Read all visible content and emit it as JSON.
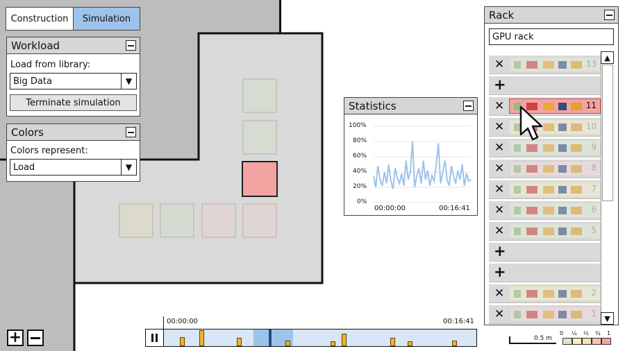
{
  "tabs": [
    {
      "label": "Construction",
      "active": false
    },
    {
      "label": "Simulation",
      "active": true
    }
  ],
  "workload": {
    "title": "Workload",
    "load_label": "Load from library:",
    "selected": "Big Data",
    "terminate_label": "Terminate simulation"
  },
  "colors_panel": {
    "title": "Colors",
    "represent_label": "Colors represent:",
    "selected": "Load"
  },
  "statistics": {
    "title": "Statistics",
    "yticks": [
      "100%",
      "80%",
      "60%",
      "40%",
      "20%",
      "0%"
    ],
    "x_start": "00:00:00",
    "x_end": "00:16:41"
  },
  "chart_data": {
    "type": "line",
    "ylim": [
      0,
      100
    ],
    "x_labels": [
      "00:00:00",
      "00:16:41"
    ],
    "yticks": [
      "0%",
      "20%",
      "40%",
      "60%",
      "80%",
      "100%"
    ],
    "values": [
      35,
      20,
      48,
      30,
      22,
      40,
      25,
      50,
      28,
      18,
      45,
      32,
      25,
      38,
      22,
      55,
      30,
      40,
      80,
      20,
      35,
      45,
      25,
      55,
      30,
      42,
      22,
      35,
      28,
      50,
      78,
      25,
      40,
      55,
      30,
      22,
      48,
      35,
      25,
      42,
      30,
      50,
      22,
      38,
      28,
      30
    ]
  },
  "rack": {
    "title": "Rack",
    "name_value": "GPU rack",
    "slots": [
      {
        "type": "machine",
        "label": "13",
        "tone": "g",
        "active": false
      },
      {
        "type": "add"
      },
      {
        "type": "machine",
        "label": "11",
        "tone": "r",
        "active": true
      },
      {
        "type": "machine",
        "label": "10",
        "tone": "y",
        "active": false
      },
      {
        "type": "machine",
        "label": "9",
        "tone": "g",
        "active": false
      },
      {
        "type": "machine",
        "label": "8",
        "tone": "r",
        "active": false
      },
      {
        "type": "machine",
        "label": "7",
        "tone": "y",
        "active": false
      },
      {
        "type": "machine",
        "label": "6",
        "tone": "g",
        "active": false
      },
      {
        "type": "machine",
        "label": "5",
        "tone": "g",
        "active": false
      },
      {
        "type": "add"
      },
      {
        "type": "add"
      },
      {
        "type": "machine",
        "label": "2",
        "tone": "y",
        "active": false
      },
      {
        "type": "machine",
        "label": "1",
        "tone": "r",
        "active": false
      }
    ]
  },
  "timeline": {
    "start": "00:00:00",
    "end": "00:16:41"
  },
  "scale": {
    "distance_label": "0.5 m",
    "legend_ticks": [
      "0",
      "¼",
      "½",
      "¾",
      "1"
    ],
    "legend_colors": [
      "#d5e8c4",
      "#f3efc0",
      "#f7e0b0",
      "#f5c4b0",
      "#f4a3a3"
    ]
  },
  "colors": {
    "tab_active": "#9ec3ea",
    "chart_line": "#9ec3ea",
    "active_tile": "#f4a3a3",
    "timeline_bg": "#d8e6f5",
    "timeline_window": "#9ec3ea"
  }
}
